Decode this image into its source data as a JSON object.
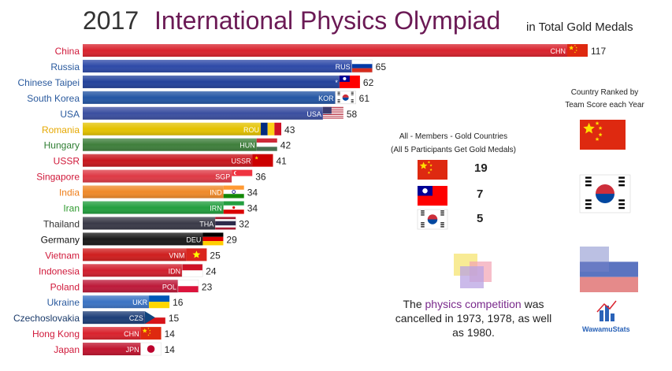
{
  "header": {
    "year": "2017",
    "title": "International Physics Olympiad",
    "subtitle": "in Total Gold Medals"
  },
  "chart_data": {
    "type": "bar",
    "orientation": "horizontal",
    "title": "International Physics Olympiad",
    "subtitle": "in Total Gold Medals",
    "categories": [
      "China",
      "Russia",
      "Chinese Taipei",
      "South Korea",
      "USA",
      "Romania",
      "Hungary",
      "USSR",
      "Singapore",
      "India",
      "Iran",
      "Thailand",
      "Germany",
      "Vietnam",
      "Indonesia",
      "Poland",
      "Ukraine",
      "Czechoslovakia",
      "Hong Kong",
      "Japan"
    ],
    "codes": [
      "CHN",
      "RUS",
      "*",
      "KOR",
      "USA",
      "ROU",
      "HUN",
      "USSR",
      "SGP",
      "IND",
      "IRN",
      "THA",
      "DEU",
      "VNM",
      "IDN",
      "POL",
      "UKR",
      "CZS",
      "CHN",
      "JPN"
    ],
    "values": [
      117,
      65,
      62,
      61,
      58,
      43,
      42,
      41,
      36,
      34,
      34,
      32,
      29,
      25,
      24,
      23,
      16,
      15,
      14,
      14
    ],
    "label_colors": [
      "#d0193a",
      "#2a5a9e",
      "#2a5a9e",
      "#2a5a9e",
      "#2a5a9e",
      "#e6a800",
      "#2e7d32",
      "#d0193a",
      "#d0193a",
      "#ef7f1a",
      "#2e9a2e",
      "#333333",
      "#111111",
      "#d0193a",
      "#d0193a",
      "#d0193a",
      "#2a5a9e",
      "#1a3a6a",
      "#d0193a",
      "#d0193a"
    ],
    "bar_colors": [
      "#d9232e",
      "#2e4aa8",
      "#23429b",
      "#2456a4",
      "#3b4fa0",
      "#e4c200",
      "#3f7f3c",
      "#c8171e",
      "#de3a46",
      "#ef8a2a",
      "#239f3f",
      "#3a3a48",
      "#1a1a1a",
      "#cf1f1f",
      "#d11f2e",
      "#bd1a3a",
      "#3c74c4",
      "#1e3f78",
      "#d9232e",
      "#c0142f"
    ],
    "flags": [
      "china",
      "russia",
      "taiwan",
      "korea",
      "usa",
      "romania",
      "hungary",
      "ussr",
      "singapore",
      "india",
      "iran",
      "thailand",
      "germany",
      "vietnam",
      "indonesia",
      "poland",
      "ukraine",
      "czech",
      "china",
      "japan"
    ]
  },
  "panel": {
    "heading_line1": "All - Members - Gold Countries",
    "heading_line2": "(All 5 Participants Get Gold Medals)",
    "rows": [
      {
        "flag": "china",
        "count": "19"
      },
      {
        "flag": "taiwan",
        "count": "7"
      },
      {
        "flag": "korea",
        "count": "5"
      }
    ]
  },
  "ranked": {
    "line1": "Country Ranked by",
    "line2": "Team Score each Year",
    "flags": [
      "china",
      "korea",
      "russia-taiwan-fade"
    ]
  },
  "note": {
    "pre": "The ",
    "highlight": "physics competition",
    "post": " was cancelled in 1973, 1978, as well as 1980."
  },
  "brand": "WawamuStats",
  "colors": {
    "accent": "#7a2a8c",
    "title": "#6b1a55"
  }
}
